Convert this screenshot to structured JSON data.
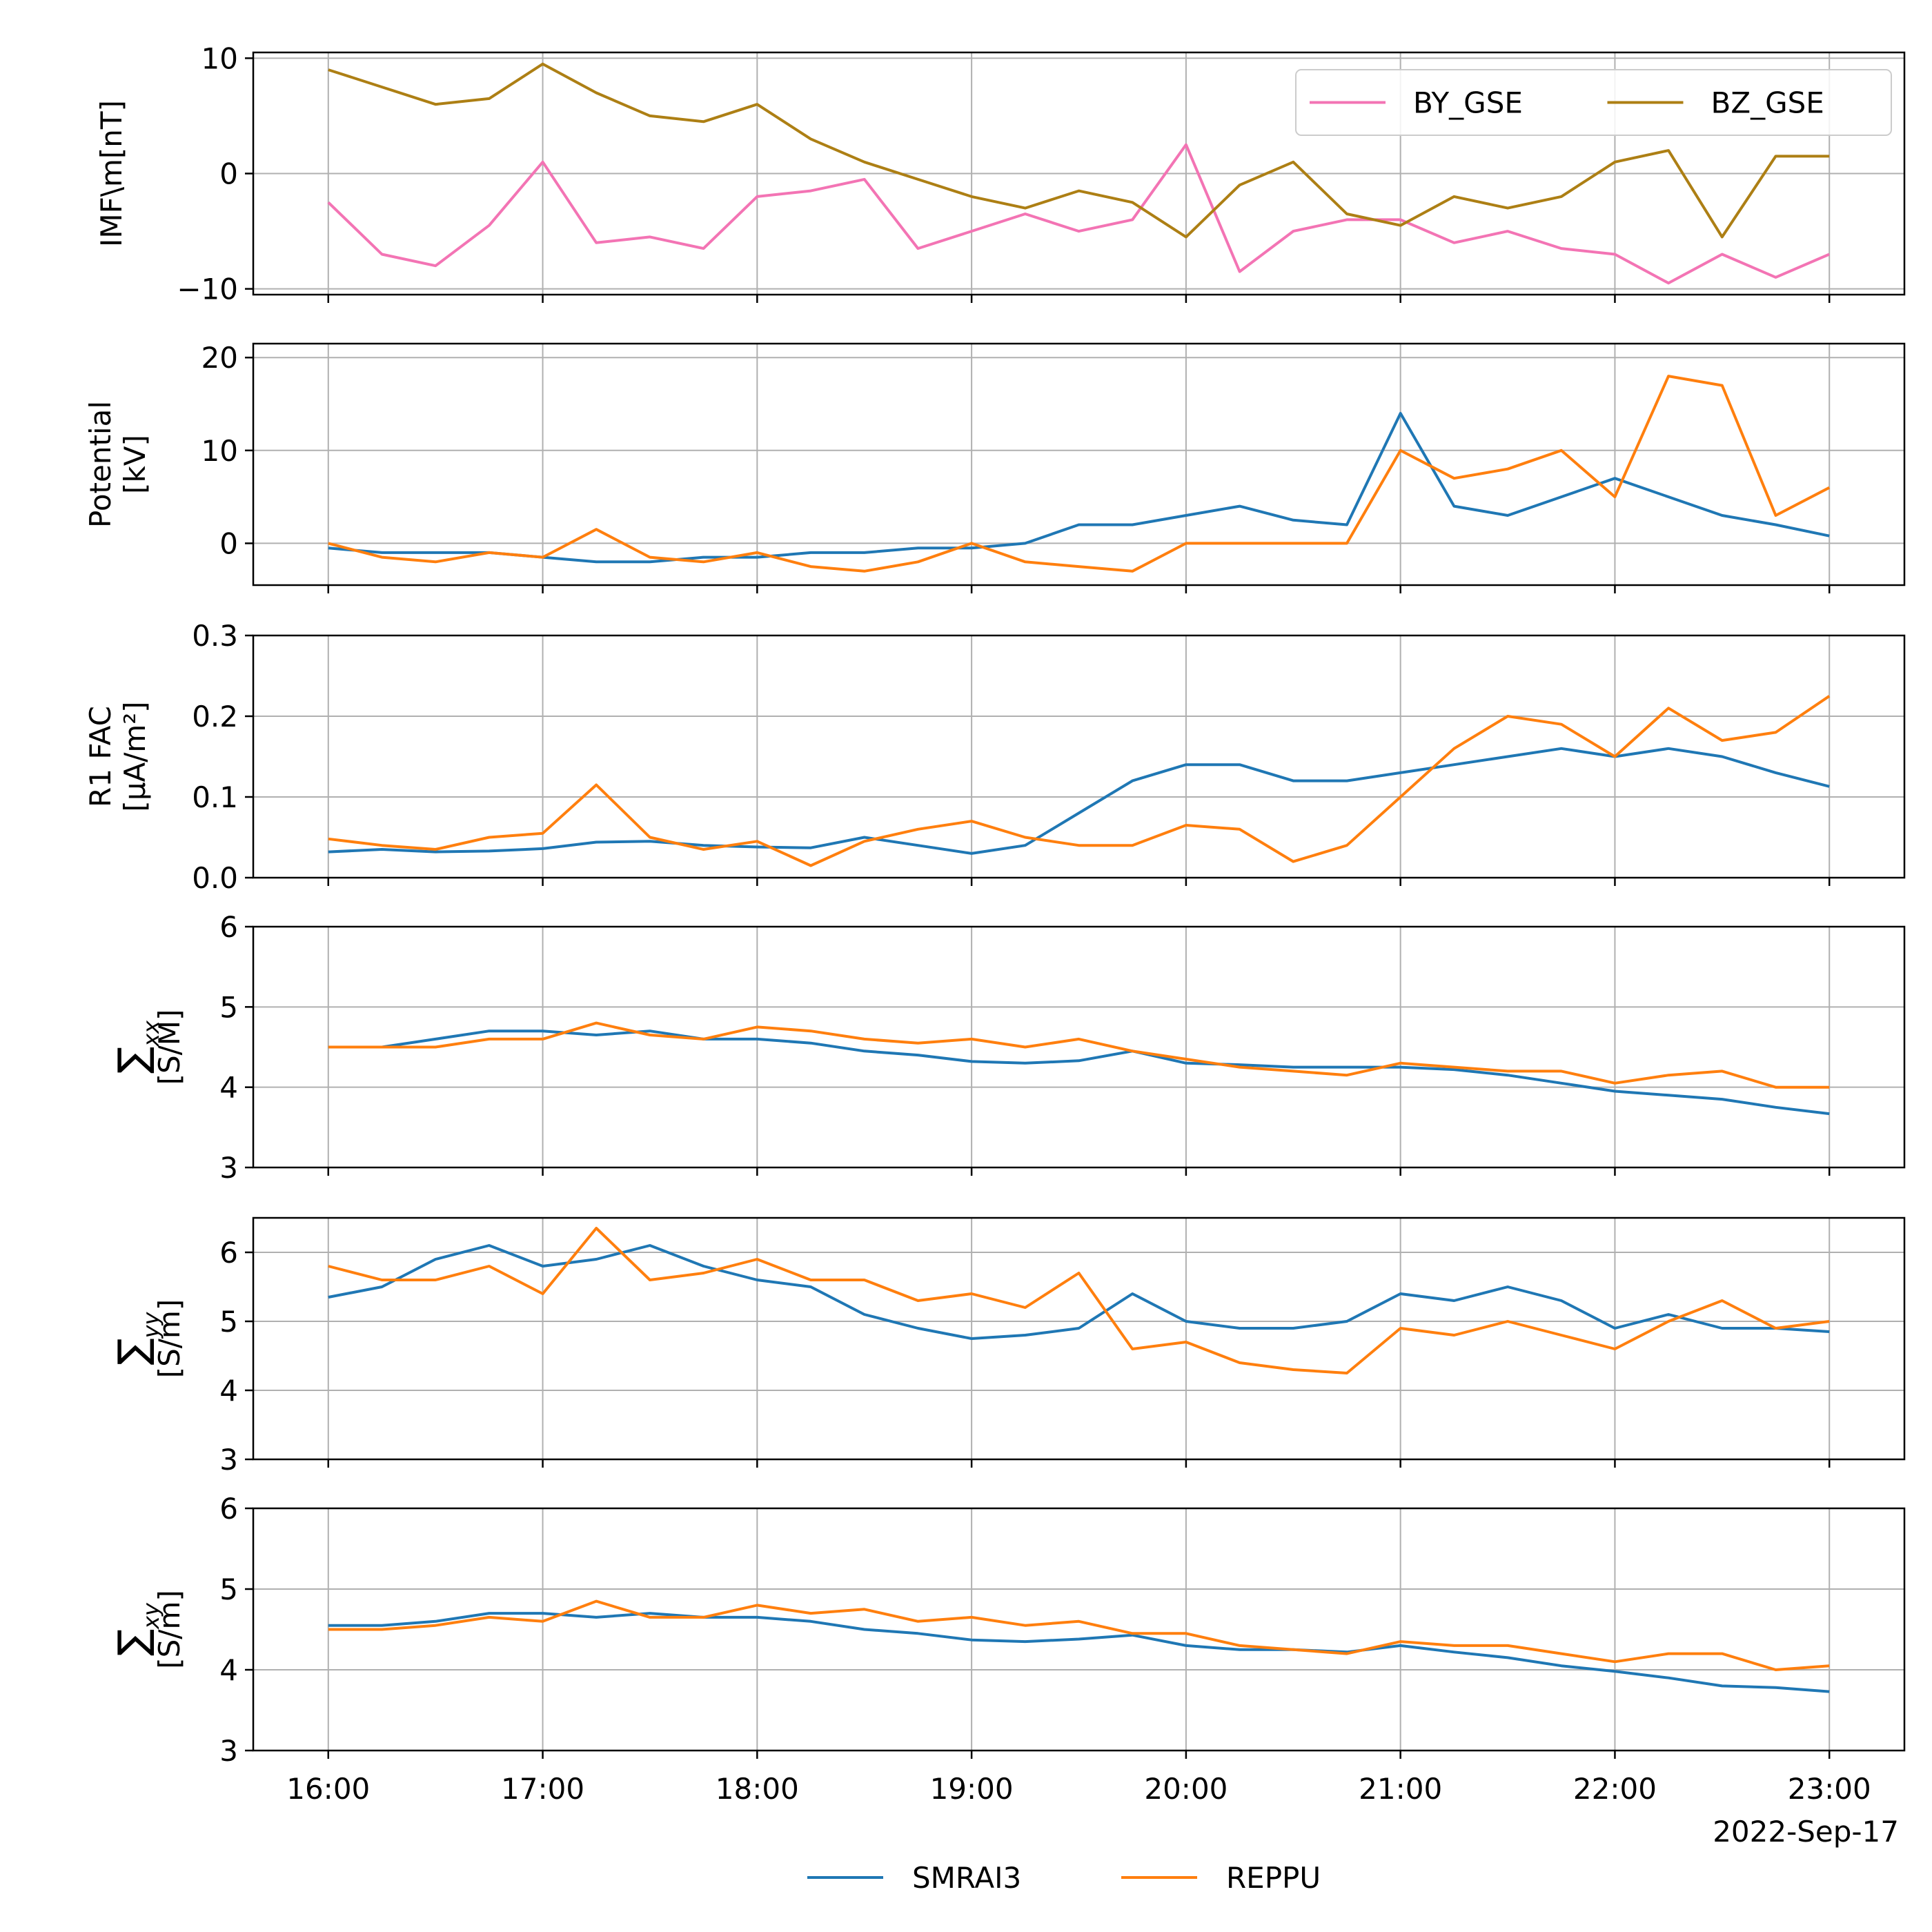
{
  "chart_data": [
    {
      "type": "line",
      "ylabel": "IMF\\m[nT]",
      "ylim": [
        -10.5,
        10.5
      ],
      "yticks": [
        -10,
        0,
        10
      ],
      "grid": true,
      "legend": {
        "placement": "upper-right",
        "columns": 2
      },
      "series": [
        {
          "name": "BY_GSE",
          "color": "#f374b4",
          "x": [
            "16:00",
            "16:15",
            "16:30",
            "16:45",
            "17:00",
            "17:15",
            "17:30",
            "17:45",
            "18:00",
            "18:15",
            "18:30",
            "18:45",
            "19:00",
            "19:15",
            "19:30",
            "19:45",
            "20:00",
            "20:15",
            "20:30",
            "20:45",
            "21:00",
            "21:15",
            "21:30",
            "21:45",
            "22:00",
            "22:15",
            "22:30",
            "22:45",
            "23:00"
          ],
          "values": [
            -2.5,
            -7,
            -8,
            -4.5,
            1,
            -6,
            -5.5,
            -6.5,
            -2,
            -1.5,
            -0.5,
            -6.5,
            -5,
            -3.5,
            -5,
            -4,
            2.5,
            -8.5,
            -5,
            -4,
            -4,
            -6,
            -5,
            -6.5,
            -7,
            -9.5,
            -7,
            -9,
            -7
          ]
        },
        {
          "name": "BZ_GSE",
          "color": "#ad7f14",
          "x": [
            "16:00",
            "16:15",
            "16:30",
            "16:45",
            "17:00",
            "17:15",
            "17:30",
            "17:45",
            "18:00",
            "18:15",
            "18:30",
            "18:45",
            "19:00",
            "19:15",
            "19:30",
            "19:45",
            "20:00",
            "20:15",
            "20:30",
            "20:45",
            "21:00",
            "21:15",
            "21:30",
            "21:45",
            "22:00",
            "22:15",
            "22:30",
            "22:45",
            "23:00"
          ],
          "values": [
            9,
            7.5,
            6,
            6.5,
            9.5,
            7,
            5,
            4.5,
            6,
            3,
            1,
            -0.5,
            -2,
            -3,
            -1.5,
            -2.5,
            -5.5,
            -1,
            1,
            -3.5,
            -4.5,
            -2,
            -3,
            -2,
            1,
            2,
            -5.5,
            1.5,
            1.5
          ]
        }
      ]
    },
    {
      "type": "line",
      "ylabel": "Potential",
      "ylabel2": "[kV]",
      "ylim": [
        -4.5,
        21.5
      ],
      "yticks": [
        0,
        10,
        20
      ],
      "grid": true,
      "series": [
        {
          "name": "SMRAI3",
          "color": "#1f77b4",
          "x": [
            "16:00",
            "16:15",
            "16:30",
            "16:45",
            "17:00",
            "17:15",
            "17:30",
            "17:45",
            "18:00",
            "18:15",
            "18:30",
            "18:45",
            "19:00",
            "19:15",
            "19:30",
            "19:45",
            "20:00",
            "20:15",
            "20:30",
            "20:45",
            "21:00",
            "21:15",
            "21:30",
            "21:45",
            "22:00",
            "22:15",
            "22:30",
            "22:45",
            "23:00"
          ],
          "values": [
            -0.5,
            -1,
            -1,
            -1,
            -1.5,
            -2,
            -2,
            -1.5,
            -1.5,
            -1,
            -1,
            -0.5,
            -0.5,
            0,
            2,
            2,
            3,
            4,
            2.5,
            2,
            14,
            4,
            3,
            5,
            7,
            5,
            3,
            2,
            0.8
          ]
        },
        {
          "name": "REPPU",
          "color": "#ff7f0e",
          "x": [
            "16:00",
            "16:15",
            "16:30",
            "16:45",
            "17:00",
            "17:15",
            "17:30",
            "17:45",
            "18:00",
            "18:15",
            "18:30",
            "18:45",
            "19:00",
            "19:15",
            "19:30",
            "19:45",
            "20:00",
            "20:15",
            "20:30",
            "20:45",
            "21:00",
            "21:15",
            "21:30",
            "21:45",
            "22:00",
            "22:15",
            "22:30",
            "22:45",
            "23:00"
          ],
          "values": [
            0,
            -1.5,
            -2,
            -1,
            -1.5,
            1.5,
            -1.5,
            -2,
            -1,
            -2.5,
            -3,
            -2,
            0,
            -2,
            -2.5,
            -3,
            0,
            0,
            0,
            0,
            10,
            7,
            8,
            10,
            5,
            18,
            17,
            3,
            6
          ]
        }
      ]
    },
    {
      "type": "line",
      "ylabel": "R1 FAC",
      "ylabel2": "[μA/m²]",
      "ylim": [
        0.0,
        0.3
      ],
      "yticks": [
        0.0,
        0.1,
        0.2,
        0.3
      ],
      "grid": true,
      "series": [
        {
          "name": "SMRAI3",
          "color": "#1f77b4",
          "x": [
            "16:00",
            "16:15",
            "16:30",
            "16:45",
            "17:00",
            "17:15",
            "17:30",
            "17:45",
            "18:00",
            "18:15",
            "18:30",
            "18:45",
            "19:00",
            "19:15",
            "19:30",
            "19:45",
            "20:00",
            "20:15",
            "20:30",
            "20:45",
            "21:00",
            "21:15",
            "21:30",
            "21:45",
            "22:00",
            "22:15",
            "22:30",
            "22:45",
            "23:00"
          ],
          "values": [
            0.032,
            0.035,
            0.032,
            0.033,
            0.036,
            0.044,
            0.045,
            0.04,
            0.038,
            0.037,
            0.05,
            0.04,
            0.03,
            0.04,
            0.08,
            0.12,
            0.14,
            0.14,
            0.12,
            0.12,
            0.13,
            0.14,
            0.15,
            0.16,
            0.15,
            0.16,
            0.15,
            0.13,
            0.113
          ]
        },
        {
          "name": "REPPU",
          "color": "#ff7f0e",
          "x": [
            "16:00",
            "16:15",
            "16:30",
            "16:45",
            "17:00",
            "17:15",
            "17:30",
            "17:45",
            "18:00",
            "18:15",
            "18:30",
            "18:45",
            "19:00",
            "19:15",
            "19:30",
            "19:45",
            "20:00",
            "20:15",
            "20:30",
            "20:45",
            "21:00",
            "21:15",
            "21:30",
            "21:45",
            "22:00",
            "22:15",
            "22:30",
            "22:45",
            "23:00"
          ],
          "values": [
            0.048,
            0.04,
            0.035,
            0.05,
            0.055,
            0.115,
            0.05,
            0.035,
            0.045,
            0.015,
            0.045,
            0.06,
            0.07,
            0.05,
            0.04,
            0.04,
            0.065,
            0.06,
            0.02,
            0.04,
            0.1,
            0.16,
            0.2,
            0.19,
            0.15,
            0.21,
            0.17,
            0.18,
            0.225
          ]
        }
      ]
    },
    {
      "type": "line",
      "ylabel_symbol": "∑",
      "ylabel_sub": "xx",
      "ylabel2": "[S/M]",
      "ylim": [
        3,
        6
      ],
      "yticks": [
        3,
        4,
        5,
        6
      ],
      "grid": true,
      "series": [
        {
          "name": "SMRAI3",
          "color": "#1f77b4",
          "x": [
            "16:00",
            "16:15",
            "16:30",
            "16:45",
            "17:00",
            "17:15",
            "17:30",
            "17:45",
            "18:00",
            "18:15",
            "18:30",
            "18:45",
            "19:00",
            "19:15",
            "19:30",
            "19:45",
            "20:00",
            "20:15",
            "20:30",
            "20:45",
            "21:00",
            "21:15",
            "21:30",
            "21:45",
            "22:00",
            "22:15",
            "22:30",
            "22:45",
            "23:00"
          ],
          "values": [
            4.5,
            4.5,
            4.6,
            4.7,
            4.7,
            4.65,
            4.7,
            4.6,
            4.6,
            4.55,
            4.45,
            4.4,
            4.32,
            4.3,
            4.33,
            4.45,
            4.3,
            4.28,
            4.25,
            4.25,
            4.25,
            4.22,
            4.15,
            4.05,
            3.95,
            3.9,
            3.85,
            3.75,
            3.67
          ]
        },
        {
          "name": "REPPU",
          "color": "#ff7f0e",
          "x": [
            "16:00",
            "16:15",
            "16:30",
            "16:45",
            "17:00",
            "17:15",
            "17:30",
            "17:45",
            "18:00",
            "18:15",
            "18:30",
            "18:45",
            "19:00",
            "19:15",
            "19:30",
            "19:45",
            "20:00",
            "20:15",
            "20:30",
            "20:45",
            "21:00",
            "21:15",
            "21:30",
            "21:45",
            "22:00",
            "22:15",
            "22:30",
            "22:45",
            "23:00"
          ],
          "values": [
            4.5,
            4.5,
            4.5,
            4.6,
            4.6,
            4.8,
            4.65,
            4.6,
            4.75,
            4.7,
            4.6,
            4.55,
            4.6,
            4.5,
            4.6,
            4.45,
            4.35,
            4.25,
            4.2,
            4.15,
            4.3,
            4.25,
            4.2,
            4.2,
            4.05,
            4.15,
            4.2,
            4.0,
            4.0
          ]
        }
      ]
    },
    {
      "type": "line",
      "ylabel_symbol": "∑",
      "ylabel_sub": "yy",
      "ylabel2": "[S/m]",
      "ylim": [
        3,
        6.5
      ],
      "yticks": [
        3,
        4,
        5,
        6
      ],
      "grid": true,
      "series": [
        {
          "name": "SMRAI3",
          "color": "#1f77b4",
          "x": [
            "16:00",
            "16:15",
            "16:30",
            "16:45",
            "17:00",
            "17:15",
            "17:30",
            "17:45",
            "18:00",
            "18:15",
            "18:30",
            "18:45",
            "19:00",
            "19:15",
            "19:30",
            "19:45",
            "20:00",
            "20:15",
            "20:30",
            "20:45",
            "21:00",
            "21:15",
            "21:30",
            "21:45",
            "22:00",
            "22:15",
            "22:30",
            "22:45",
            "23:00"
          ],
          "values": [
            5.35,
            5.5,
            5.9,
            6.1,
            5.8,
            5.9,
            6.1,
            5.8,
            5.6,
            5.5,
            5.1,
            4.9,
            4.75,
            4.8,
            4.9,
            5.4,
            5.0,
            4.9,
            4.9,
            5.0,
            5.4,
            5.3,
            5.5,
            5.3,
            4.9,
            5.1,
            4.9,
            4.9,
            4.85
          ]
        },
        {
          "name": "REPPU",
          "color": "#ff7f0e",
          "x": [
            "16:00",
            "16:15",
            "16:30",
            "16:45",
            "17:00",
            "17:15",
            "17:30",
            "17:45",
            "18:00",
            "18:15",
            "18:30",
            "18:45",
            "19:00",
            "19:15",
            "19:30",
            "19:45",
            "20:00",
            "20:15",
            "20:30",
            "20:45",
            "21:00",
            "21:15",
            "21:30",
            "21:45",
            "22:00",
            "22:15",
            "22:30",
            "22:45",
            "23:00"
          ],
          "values": [
            5.8,
            5.6,
            5.6,
            5.8,
            5.4,
            6.35,
            5.6,
            5.7,
            5.9,
            5.6,
            5.6,
            5.3,
            5.4,
            5.2,
            5.7,
            4.6,
            4.7,
            4.4,
            4.3,
            4.25,
            4.9,
            4.8,
            5.0,
            4.8,
            4.6,
            5.0,
            5.3,
            4.9,
            5.0
          ]
        }
      ]
    },
    {
      "type": "line",
      "ylabel_symbol": "∑",
      "ylabel_sub": "xy",
      "ylabel2": "[S/m]",
      "ylim": [
        3,
        6
      ],
      "yticks": [
        3,
        4,
        5,
        6
      ],
      "grid": true,
      "xlim": [
        "15:39",
        "23:21"
      ],
      "xticks": [
        "16:00",
        "17:00",
        "18:00",
        "19:00",
        "20:00",
        "21:00",
        "22:00",
        "23:00"
      ],
      "x_date_label": "2022-Sep-17",
      "series": [
        {
          "name": "SMRAI3",
          "color": "#1f77b4",
          "x": [
            "16:00",
            "16:15",
            "16:30",
            "16:45",
            "17:00",
            "17:15",
            "17:30",
            "17:45",
            "18:00",
            "18:15",
            "18:30",
            "18:45",
            "19:00",
            "19:15",
            "19:30",
            "19:45",
            "20:00",
            "20:15",
            "20:30",
            "20:45",
            "21:00",
            "21:15",
            "21:30",
            "21:45",
            "22:00",
            "22:15",
            "22:30",
            "22:45",
            "23:00"
          ],
          "values": [
            4.55,
            4.55,
            4.6,
            4.7,
            4.7,
            4.65,
            4.7,
            4.65,
            4.65,
            4.6,
            4.5,
            4.45,
            4.37,
            4.35,
            4.38,
            4.43,
            4.3,
            4.25,
            4.25,
            4.22,
            4.3,
            4.22,
            4.15,
            4.05,
            3.98,
            3.9,
            3.8,
            3.78,
            3.73
          ]
        },
        {
          "name": "REPPU",
          "color": "#ff7f0e",
          "x": [
            "16:00",
            "16:15",
            "16:30",
            "16:45",
            "17:00",
            "17:15",
            "17:30",
            "17:45",
            "18:00",
            "18:15",
            "18:30",
            "18:45",
            "19:00",
            "19:15",
            "19:30",
            "19:45",
            "20:00",
            "20:15",
            "20:30",
            "20:45",
            "21:00",
            "21:15",
            "21:30",
            "21:45",
            "22:00",
            "22:15",
            "22:30",
            "22:45",
            "23:00"
          ],
          "values": [
            4.5,
            4.5,
            4.55,
            4.65,
            4.6,
            4.85,
            4.65,
            4.65,
            4.8,
            4.7,
            4.75,
            4.6,
            4.65,
            4.55,
            4.6,
            4.45,
            4.45,
            4.3,
            4.25,
            4.2,
            4.35,
            4.3,
            4.3,
            4.2,
            4.1,
            4.2,
            4.2,
            4.0,
            4.05
          ]
        }
      ]
    }
  ],
  "shared_legend": [
    {
      "name": "SMRAI3",
      "color": "#1f77b4"
    },
    {
      "name": "REPPU",
      "color": "#ff7f0e"
    }
  ]
}
